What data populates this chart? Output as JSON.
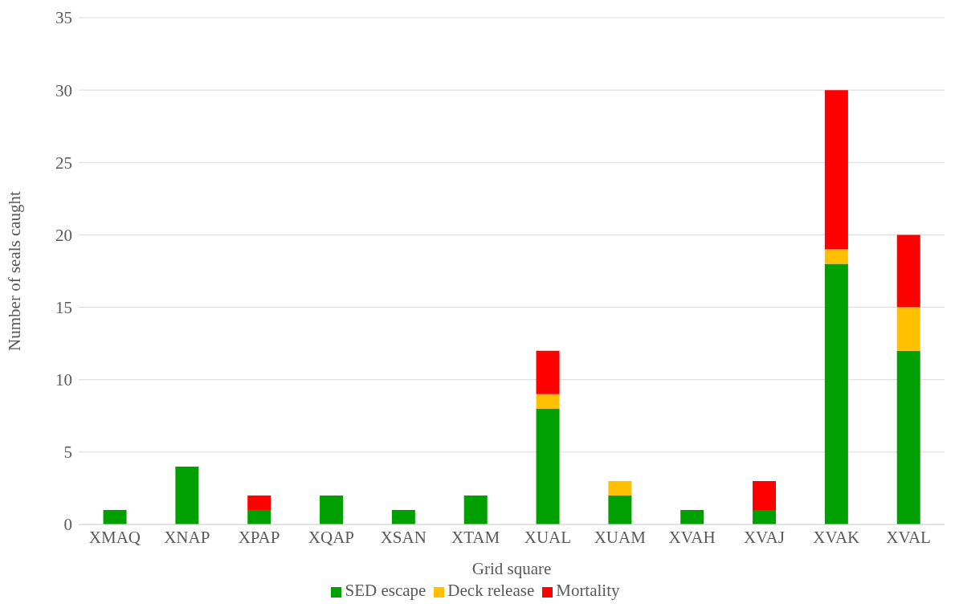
{
  "chart_data": {
    "type": "bar",
    "stacked": true,
    "xlabel": "Grid square",
    "ylabel": "Number of seals caught",
    "categories": [
      "XMAQ",
      "XNAP",
      "XPAP",
      "XQAP",
      "XSAN",
      "XTAM",
      "XUAL",
      "XUAM",
      "XVAH",
      "XVAJ",
      "XVAK",
      "XVAL"
    ],
    "series": [
      {
        "name": "SED escape",
        "color": "#00a000",
        "values": [
          1,
          4,
          1,
          2,
          1,
          2,
          8,
          2,
          1,
          1,
          18,
          12
        ]
      },
      {
        "name": "Deck release",
        "color": "#ffc000",
        "values": [
          0,
          0,
          0,
          0,
          0,
          0,
          1,
          1,
          0,
          0,
          1,
          3
        ]
      },
      {
        "name": "Mortality",
        "color": "#ff0000",
        "values": [
          0,
          0,
          1,
          0,
          0,
          0,
          3,
          0,
          0,
          2,
          11,
          5
        ]
      }
    ],
    "ylim": [
      0,
      35
    ],
    "yticks": [
      0,
      5,
      10,
      15,
      20,
      25,
      30,
      35
    ],
    "grid": "y",
    "legend": "bottom"
  }
}
